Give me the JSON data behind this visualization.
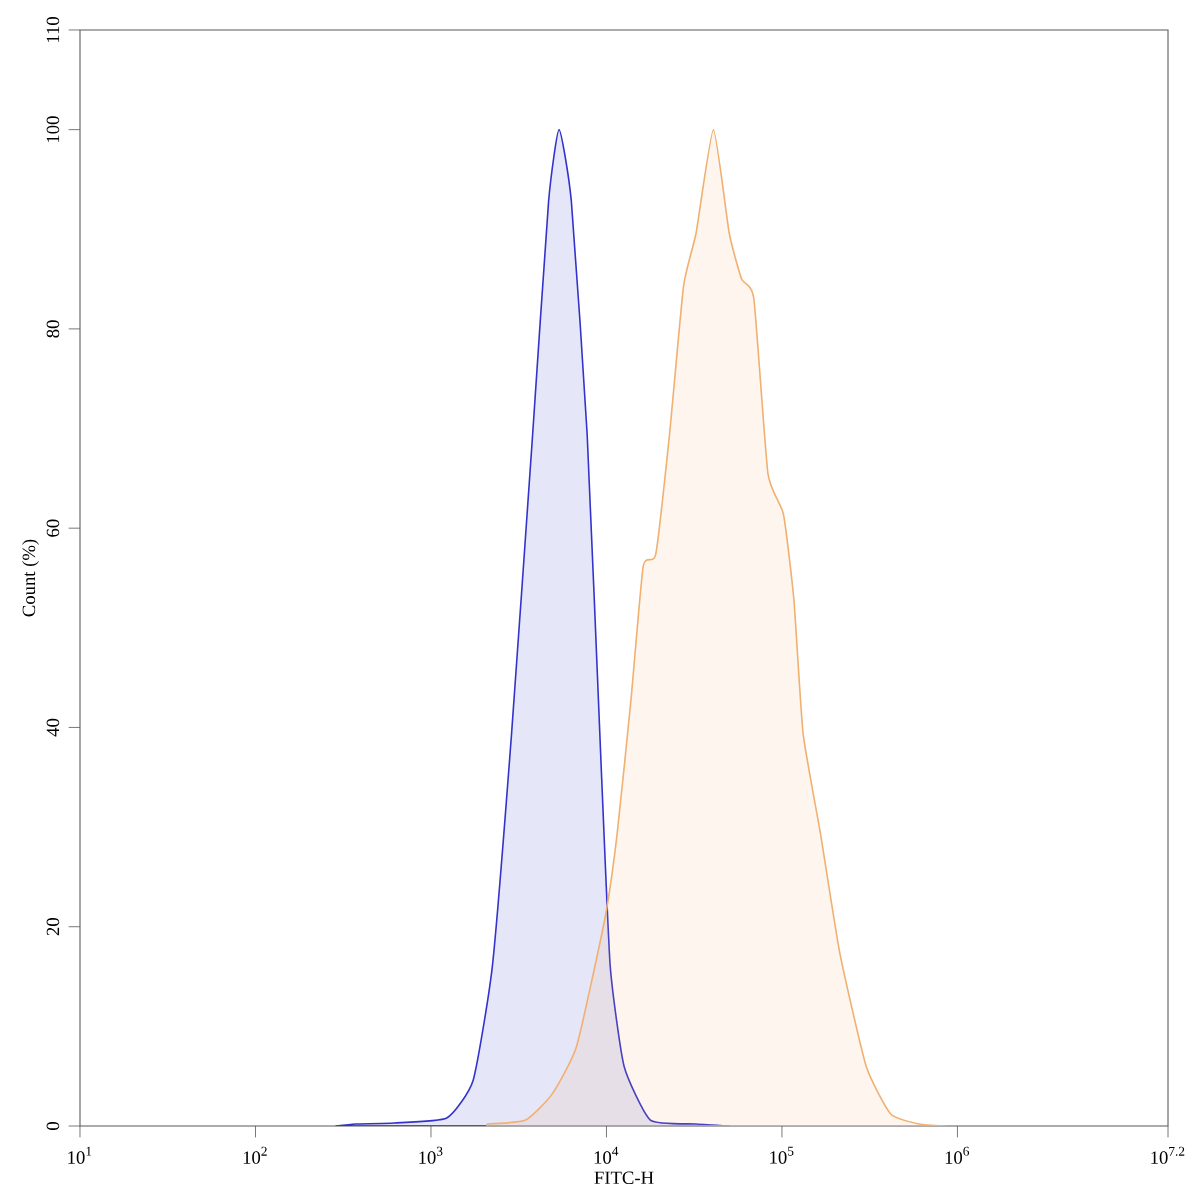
{
  "chart_data": {
    "type": "area",
    "xlabel": "FITC-H",
    "ylabel": "Count (%)",
    "log": "x",
    "grid": false,
    "xlim": [
      10,
      15848932
    ],
    "ylim": [
      0,
      110
    ],
    "xticks": [
      {
        "value": 10,
        "label": "10$^{1}$"
      },
      {
        "value": 100,
        "label": "10$^{2}$"
      },
      {
        "value": 1000,
        "label": "10$^{3}$"
      },
      {
        "value": 10000,
        "label": "10$^{4}$"
      },
      {
        "value": 100000,
        "label": "10$^{5}$"
      },
      {
        "value": 1000000,
        "label": "10$^{6}$"
      },
      {
        "value": 15848932,
        "label": "10$^{7.2}$"
      }
    ],
    "yticks": [
      0,
      20,
      40,
      60,
      80,
      100,
      110
    ],
    "series": [
      {
        "color": "#3333cc",
        "x": [
          288,
          372,
          617,
          1230,
          1740,
          2240,
          2880,
          3800,
          4680,
          5370,
          6310,
          7760,
          9330,
          10500,
          12600,
          17800,
          32400,
          50100
        ],
        "values": [
          0,
          0.2,
          0.3,
          0.8,
          4.6,
          16.1,
          39.4,
          69.5,
          92.8,
          100,
          92.8,
          69.5,
          36.1,
          16.1,
          6.0,
          0.6,
          0.2,
          0
        ]
      },
      {
        "color": "#f0b070",
        "x": [
          2090,
          3470,
          4900,
          6760,
          9770,
          11500,
          13800,
          16200,
          19100,
          22900,
          27500,
          32400,
          40700,
          50100,
          58900,
          69200,
          83200,
          102000,
          117000,
          132000,
          166000,
          214000,
          302000,
          417000,
          603000,
          851000
        ],
        "values": [
          0.2,
          0.6,
          3.2,
          8.0,
          20.7,
          29.3,
          42.8,
          56.2,
          57.4,
          69.5,
          84.3,
          89.6,
          100,
          89.6,
          85.0,
          83.0,
          65.5,
          61.4,
          52.8,
          39.4,
          29.3,
          17.3,
          6.0,
          1.2,
          0.2,
          0
        ]
      }
    ]
  }
}
